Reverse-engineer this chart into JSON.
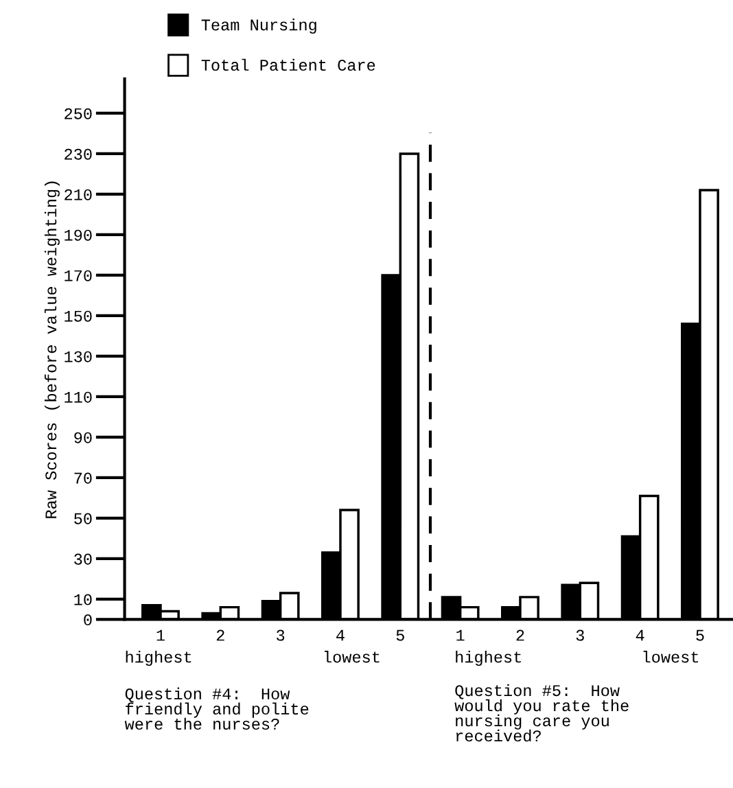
{
  "chart_data": {
    "type": "bar",
    "ylabel": "Raw Scores (before value weighting)",
    "categories": [
      "1",
      "2",
      "3",
      "4",
      "5",
      "1",
      "2",
      "3",
      "4",
      "5"
    ],
    "series": [
      {
        "name": "Team Nursing",
        "color": "#000000",
        "values": [
          7,
          3,
          9,
          33,
          170,
          11,
          6,
          17,
          41,
          146
        ]
      },
      {
        "name": "Total Patient Care",
        "color": "#ffffff",
        "values": [
          4,
          6,
          13,
          54,
          230,
          6,
          11,
          18,
          61,
          212
        ]
      }
    ],
    "ylim": [
      0,
      267
    ],
    "yticks": [
      0,
      10,
      30,
      50,
      70,
      90,
      110,
      130,
      150,
      170,
      190,
      210,
      230,
      250
    ],
    "annotations": [
      "highest",
      "lowest",
      "Question #4:  How\nfriendly and polite\nwere the nurses?",
      "highest",
      "lowest",
      "Question #5:  How\nwould you rate the\nnursing care you\nreceived?"
    ],
    "legend": "top left",
    "grid": false
  }
}
